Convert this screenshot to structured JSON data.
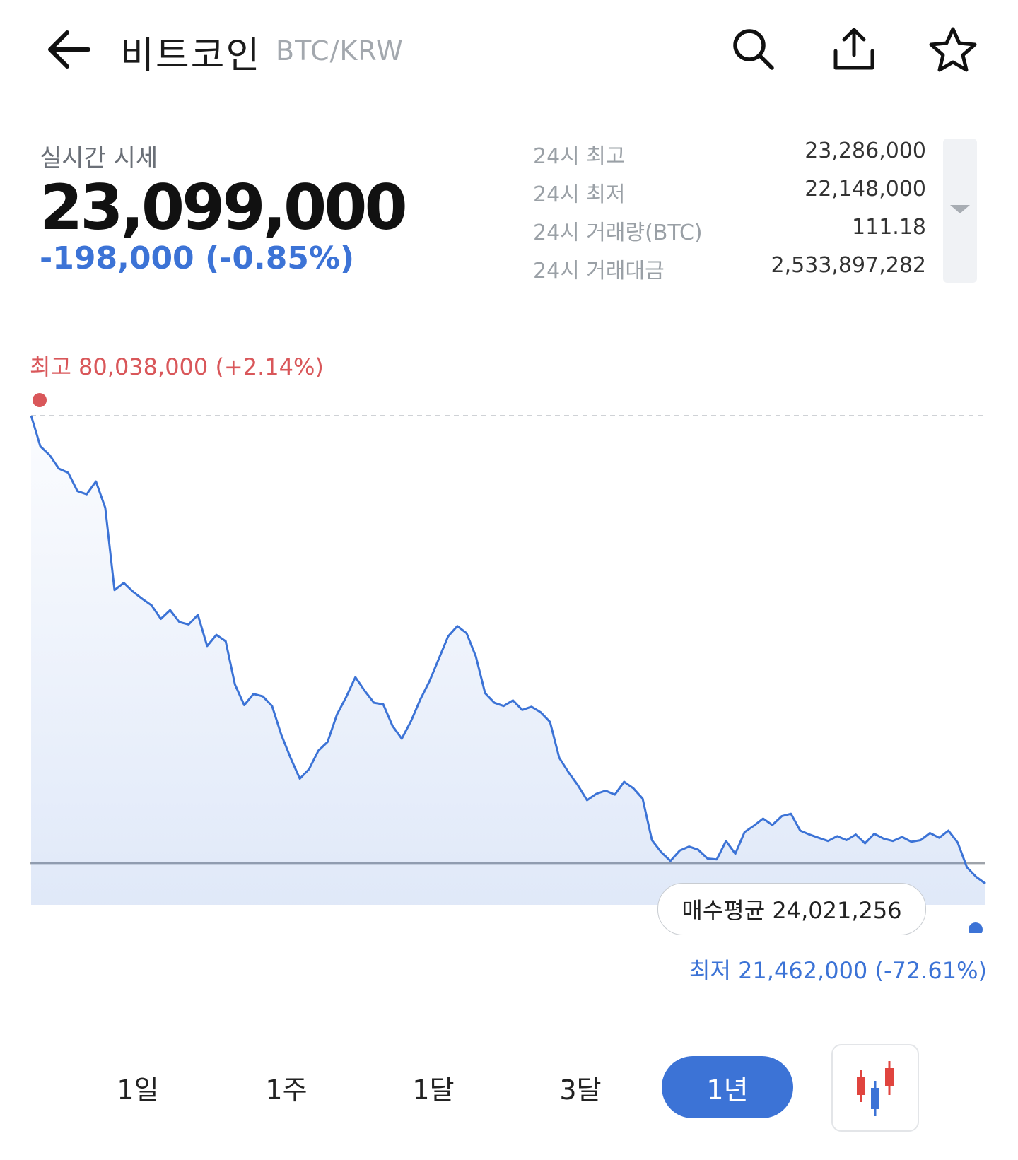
{
  "header": {
    "title": "비트코인",
    "pair": "BTC/KRW",
    "back_icon": "arrow-left-icon",
    "search_icon": "search-icon",
    "share_icon": "share-icon",
    "favorite_icon": "star-icon"
  },
  "quote": {
    "label": "실시간 시세",
    "price": "23,099,000",
    "change": "-198,000 (-0.85%)"
  },
  "stats": [
    {
      "label": "24시 최고",
      "value": "23,286,000"
    },
    {
      "label": "24시 최저",
      "value": "22,148,000"
    },
    {
      "label": "24시 거래량(BTC)",
      "value": "111.18"
    },
    {
      "label": "24시 거래대금",
      "value": "2,533,897,282"
    }
  ],
  "chart_labels": {
    "high": "최고 80,038,000 (+2.14%)",
    "low": "최저 21,462,000 (-72.61%)",
    "avg": "매수평균 24,021,256"
  },
  "periods": {
    "p1": "1일",
    "p2": "1주",
    "p3": "1달",
    "p4": "3달",
    "p5": "1년",
    "selected": "1년"
  },
  "colors": {
    "line": "#3c73d6",
    "high": "#d9575a",
    "low": "#3c73d6",
    "candle_up": "#e0443e",
    "candle_down": "#3c73d6"
  },
  "chart_data": {
    "type": "area",
    "ylim": [
      21462000,
      80038000
    ],
    "avg_line": 24021256,
    "values": [
      80038000,
      76200000,
      75100000,
      73400000,
      72900000,
      70600000,
      70200000,
      71800000,
      68500000,
      58200000,
      59100000,
      58000000,
      57100000,
      56300000,
      54600000,
      55700000,
      54200000,
      53900000,
      55100000,
      51200000,
      52600000,
      51800000,
      46400000,
      43800000,
      45200000,
      44900000,
      43700000,
      40100000,
      37200000,
      34600000,
      35800000,
      38100000,
      39200000,
      42600000,
      44800000,
      47300000,
      45600000,
      44100000,
      43900000,
      41200000,
      39600000,
      41800000,
      44500000,
      46800000,
      49600000,
      52400000,
      53700000,
      52800000,
      49900000,
      45300000,
      44100000,
      43700000,
      44400000,
      43200000,
      43600000,
      42900000,
      41700000,
      37200000,
      35400000,
      33800000,
      31900000,
      32700000,
      33100000,
      32600000,
      34200000,
      33400000,
      32100000,
      26900000,
      25400000,
      24300000,
      25600000,
      26100000,
      25700000,
      24600000,
      24500000,
      26800000,
      25200000,
      27900000,
      28700000,
      29600000,
      28800000,
      29900000,
      30200000,
      28100000,
      27600000,
      27200000,
      26800000,
      27400000,
      26900000,
      27600000,
      26500000,
      27700000,
      27100000,
      26800000,
      27300000,
      26700000,
      26900000,
      27800000,
      27200000,
      28100000,
      26600000,
      23500000,
      22300000,
      21462000
    ]
  }
}
